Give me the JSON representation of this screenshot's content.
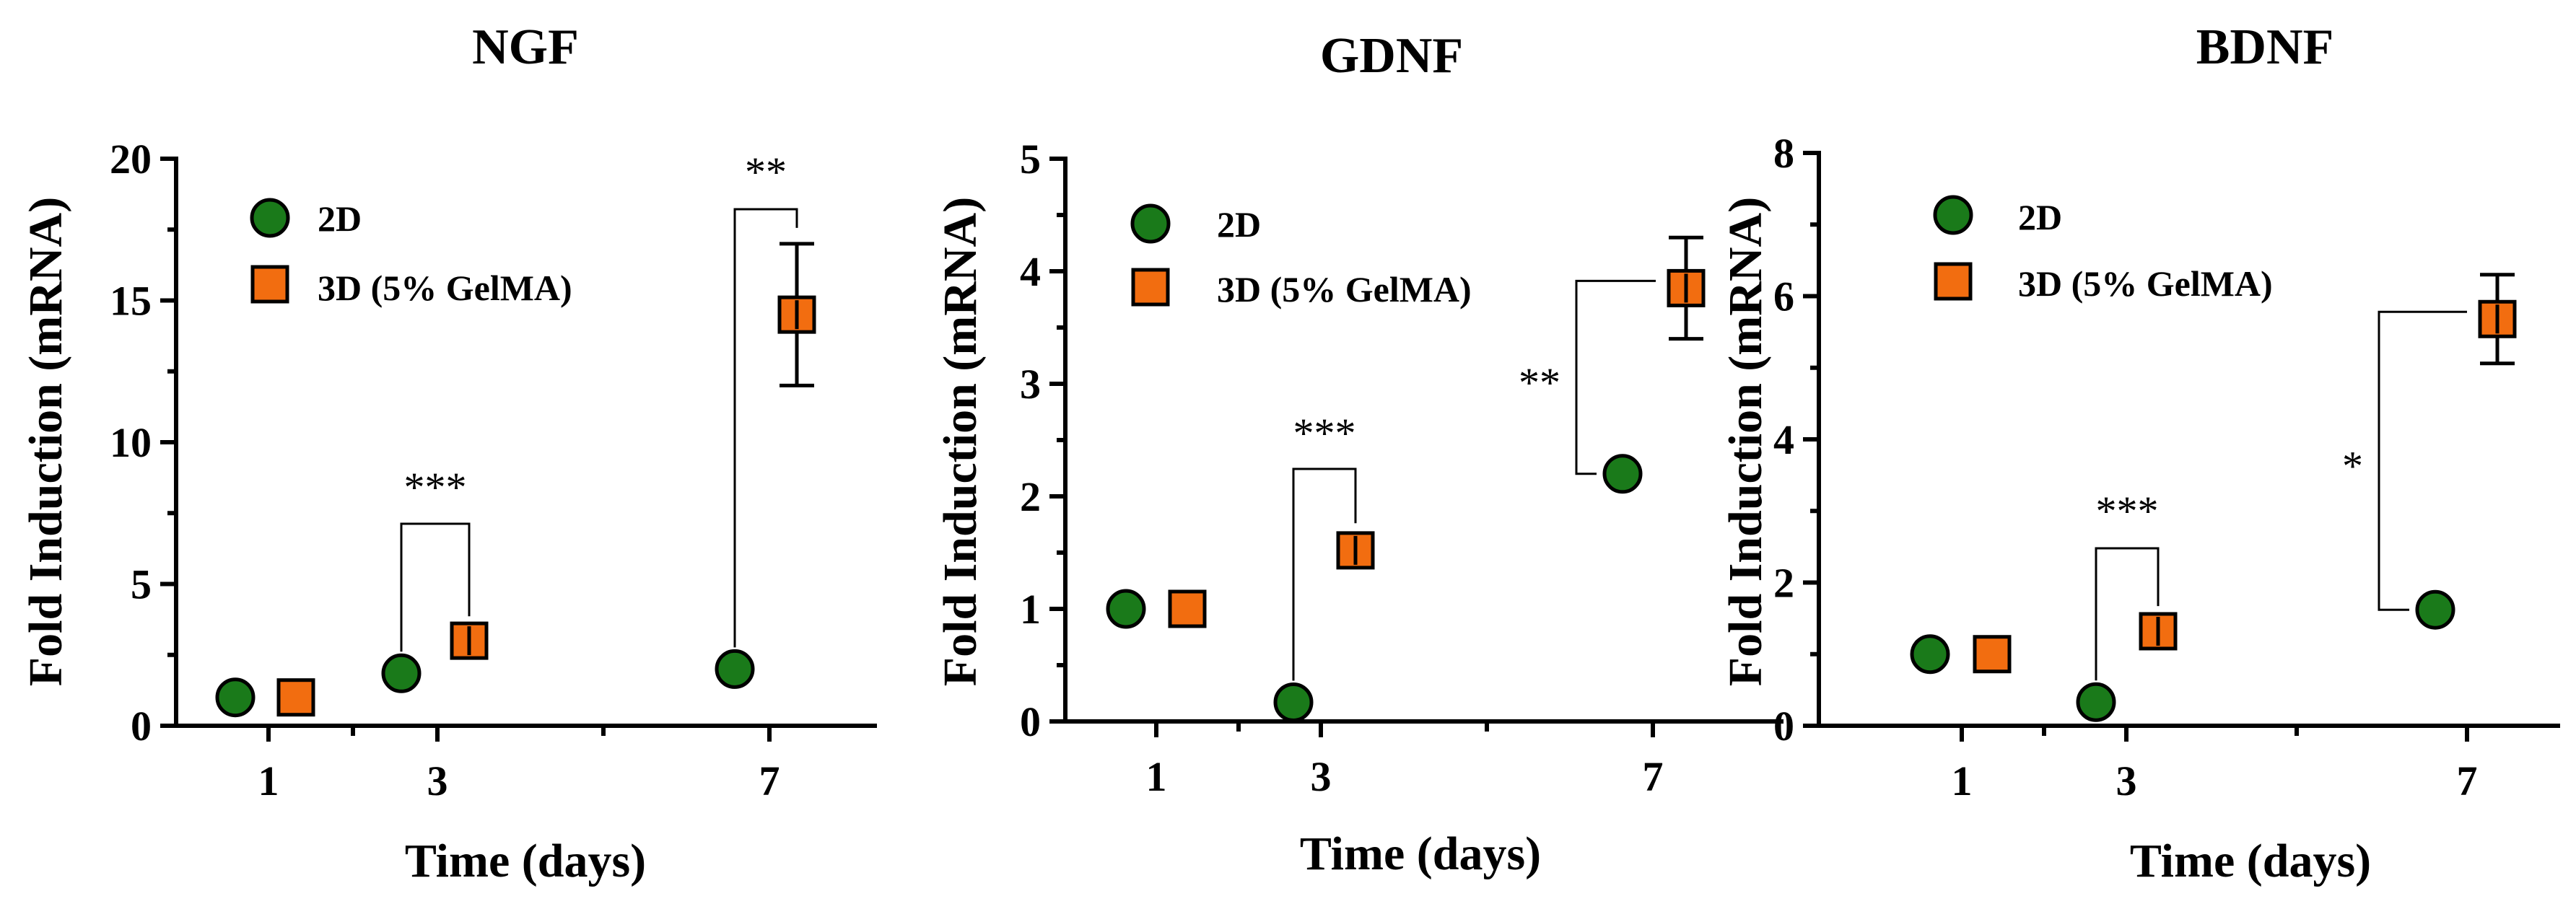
{
  "colors": {
    "series_2d": "#1a7a1a",
    "series_3d": "#f26d10",
    "edge": "#000000"
  },
  "chart_data": [
    {
      "type": "scatter",
      "title": "NGF",
      "xlabel": "Time (days)",
      "ylabel": "Fold Induction (mRNA)",
      "categories": [
        "1",
        "3",
        "7"
      ],
      "ylim": [
        0,
        20
      ],
      "yticks": [
        "0",
        "5",
        "10",
        "15",
        "20"
      ],
      "legend": [
        "2D",
        "3D (5% GelMA)"
      ],
      "series": [
        {
          "name": "2D",
          "marker": "circle",
          "values": [
            1.0,
            1.85,
            2.0
          ],
          "errors": [
            0,
            0,
            0
          ]
        },
        {
          "name": "3D (5% GelMA)",
          "marker": "square",
          "values": [
            1.0,
            3.0,
            14.5
          ],
          "errors": [
            0,
            0.3,
            2.5
          ]
        }
      ],
      "significance": [
        {
          "label": "***",
          "category": 1
        },
        {
          "label": "**",
          "category": 2
        }
      ]
    },
    {
      "type": "scatter",
      "title": "GDNF",
      "xlabel": "Time (days)",
      "ylabel": "Fold Induction (mRNA)",
      "categories": [
        "1",
        "3",
        "7"
      ],
      "ylim": [
        0,
        5
      ],
      "yticks": [
        "0",
        "1",
        "2",
        "3",
        "4",
        "5"
      ],
      "legend": [
        "2D",
        "3D (5% GelMA)"
      ],
      "series": [
        {
          "name": "2D",
          "marker": "circle",
          "values": [
            1.0,
            0.17,
            2.2
          ],
          "errors": [
            0,
            0,
            0
          ]
        },
        {
          "name": "3D (5% GelMA)",
          "marker": "square",
          "values": [
            1.0,
            1.52,
            3.85
          ],
          "errors": [
            0,
            0.1,
            0.45
          ]
        }
      ],
      "significance": [
        {
          "label": "***",
          "category": 1
        },
        {
          "label": "**",
          "category": 2
        }
      ]
    },
    {
      "type": "scatter",
      "title": "BDNF",
      "xlabel": "Time (days)",
      "ylabel": "Fold Induction (mRNA)",
      "categories": [
        "1",
        "3",
        "7"
      ],
      "ylim": [
        0,
        8
      ],
      "yticks": [
        "0",
        "2",
        "4",
        "6",
        "8"
      ],
      "legend": [
        "2D",
        "3D (5% GelMA)"
      ],
      "series": [
        {
          "name": "2D",
          "marker": "circle",
          "values": [
            1.0,
            0.33,
            1.62
          ],
          "errors": [
            0,
            0,
            0
          ]
        },
        {
          "name": "3D (5% GelMA)",
          "marker": "square",
          "values": [
            1.0,
            1.32,
            5.68
          ],
          "errors": [
            0,
            0.13,
            0.62
          ]
        }
      ],
      "significance": [
        {
          "label": "***",
          "category": 1
        },
        {
          "label": "*",
          "category": 2
        }
      ]
    }
  ]
}
